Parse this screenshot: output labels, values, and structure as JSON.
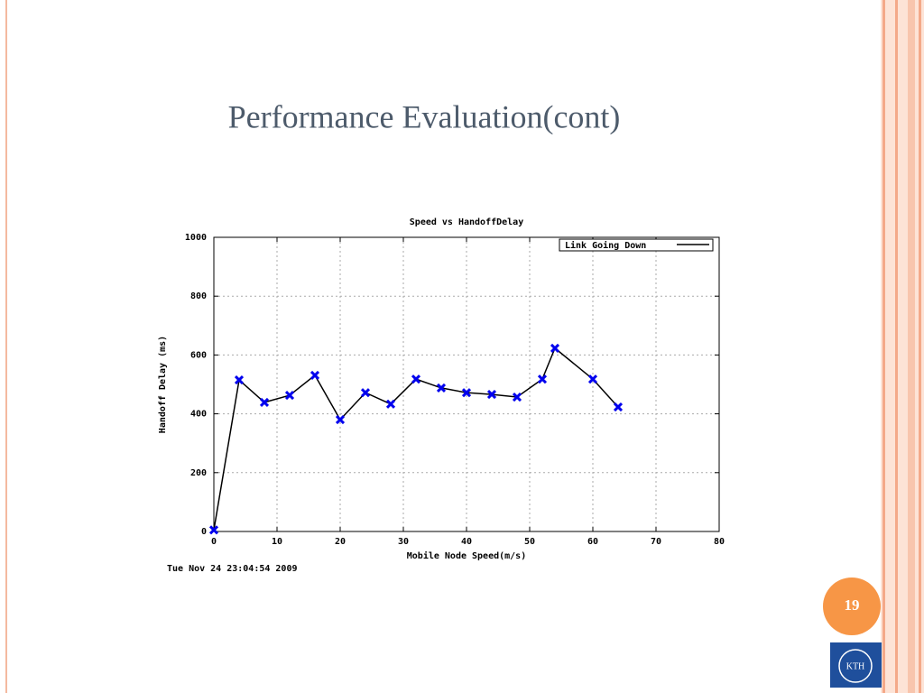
{
  "slide_title": "Performance Evaluation(cont)",
  "page_number": "19",
  "logo_text": "KTH",
  "timestamp": "Tue Nov 24 23:04:54 2009",
  "chart_data": {
    "type": "line",
    "title": "Speed vs HandoffDelay",
    "x_label": "Mobile Node Speed(m/s)",
    "y_label": "Handoff Delay (ms)",
    "x": [
      0,
      4,
      8,
      12,
      16,
      20,
      24,
      28,
      32,
      36,
      40,
      44,
      48,
      52,
      54,
      60,
      64
    ],
    "series": [
      {
        "name": "Link Going Down",
        "color": "#000000",
        "marker_color": "#0000ee",
        "values": [
          5,
          515,
          439,
          463,
          531,
          380,
          472,
          433,
          518,
          488,
          472,
          466,
          457,
          518,
          623,
          518,
          423
        ]
      }
    ],
    "xlim": [
      0,
      80
    ],
    "xticks": [
      0,
      10,
      20,
      30,
      40,
      50,
      60,
      70,
      80
    ],
    "ylim": [
      0,
      1000
    ],
    "yticks": [
      0,
      200,
      400,
      600,
      800,
      1000
    ],
    "grid": true,
    "legend": "top-right"
  }
}
